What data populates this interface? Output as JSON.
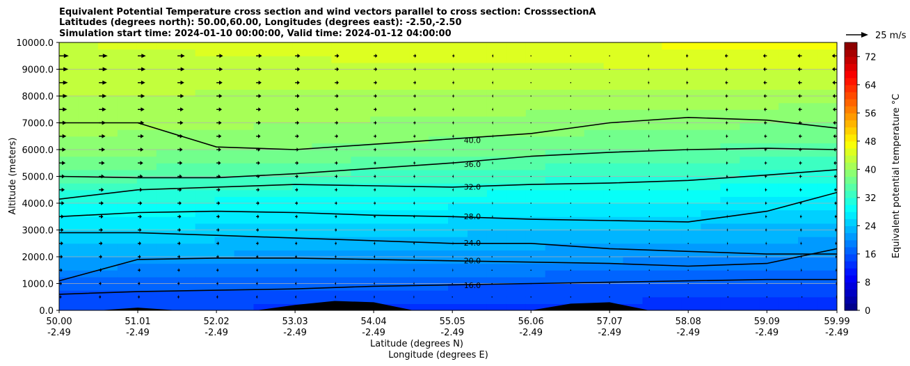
{
  "chart_data": {
    "type": "heatmap",
    "title_lines": [
      "Equivalent Potential Temperature cross section and wind vectors parallel to cross section: CrosssectionA",
      "Latitudes (degrees north): 50.00,60.00, Longitudes (degrees east): -2.50,-2.50",
      "Simulation start time: 2024-01-10 00:00:00, Valid time: 2024-01-12 04:00:00"
    ],
    "xlabel_lines": [
      "Latitude (degrees N)",
      "Longitude (degrees E)"
    ],
    "ylabel": "Altitude (meters)",
    "x_ticks": [
      {
        "lat": "50.00",
        "lon": "-2.49",
        "v": 50.0
      },
      {
        "lat": "51.01",
        "lon": "-2.49",
        "v": 51.01
      },
      {
        "lat": "52.02",
        "lon": "-2.49",
        "v": 52.02
      },
      {
        "lat": "53.03",
        "lon": "-2.49",
        "v": 53.03
      },
      {
        "lat": "54.04",
        "lon": "-2.49",
        "v": 54.04
      },
      {
        "lat": "55.05",
        "lon": "-2.49",
        "v": 55.05
      },
      {
        "lat": "56.06",
        "lon": "-2.49",
        "v": 56.06
      },
      {
        "lat": "57.07",
        "lon": "-2.49",
        "v": 57.07
      },
      {
        "lat": "58.08",
        "lon": "-2.49",
        "v": 58.08
      },
      {
        "lat": "59.09",
        "lon": "-2.49",
        "v": 59.09
      },
      {
        "lat": "59.99",
        "lon": "-2.49",
        "v": 59.99
      }
    ],
    "xlim": [
      50.0,
      59.99
    ],
    "y_ticks": [
      "0.0",
      "1000.0",
      "2000.0",
      "3000.0",
      "4000.0",
      "5000.0",
      "6000.0",
      "7000.0",
      "8000.0",
      "9000.0",
      "10000.0"
    ],
    "ylim": [
      0,
      10000
    ],
    "grid": "horizontal",
    "colorbar": {
      "label": "Equivalent potential temperature °C",
      "ticks": [
        "0",
        "8",
        "16",
        "24",
        "32",
        "40",
        "48",
        "56",
        "64",
        "72"
      ],
      "range": [
        0,
        76
      ],
      "colormap": "jet"
    },
    "quiver_key": {
      "label": "25 m/s",
      "speed": 25
    },
    "contour_levels": [
      {
        "value": 16,
        "label": "16.0",
        "heights": [
          600,
          700,
          750,
          800,
          900,
          950,
          1000,
          1050,
          1100,
          1150,
          1150
        ]
      },
      {
        "value": 20,
        "label": "20.0",
        "heights": [
          1100,
          1900,
          1950,
          1950,
          1900,
          1850,
          1800,
          1750,
          1650,
          1750,
          2300
        ]
      },
      {
        "value": 24,
        "label": "24.0",
        "heights": [
          2900,
          2900,
          2800,
          2700,
          2600,
          2500,
          2500,
          2300,
          2200,
          2100,
          2100
        ]
      },
      {
        "value": 28,
        "label": "28.0",
        "heights": [
          3500,
          3650,
          3700,
          3650,
          3550,
          3500,
          3400,
          3350,
          3300,
          3700,
          4400
        ]
      },
      {
        "value": 32,
        "label": "32.0",
        "heights": [
          4150,
          4500,
          4600,
          4700,
          4650,
          4600,
          4700,
          4750,
          4850,
          5050,
          5250
        ]
      },
      {
        "value": 36,
        "label": "36.0",
        "heights": [
          5000,
          4950,
          4950,
          5100,
          5300,
          5500,
          5750,
          5900,
          6000,
          6050,
          6000
        ]
      },
      {
        "value": 40,
        "label": "40.0",
        "heights": [
          7000,
          7000,
          6100,
          6000,
          6200,
          6400,
          6600,
          7000,
          7200,
          7100,
          6800
        ]
      }
    ],
    "temperature_profile": {
      "altitudes": [
        0,
        500,
        1000,
        2000,
        3000,
        4000,
        5000,
        6000,
        7000,
        8000,
        9000,
        10000
      ],
      "values_south": [
        14,
        15,
        17,
        22,
        26,
        30,
        35,
        39,
        41,
        42,
        43,
        44
      ],
      "values_north": [
        13,
        14,
        16,
        20,
        23,
        27,
        31,
        35,
        38,
        41,
        44,
        47
      ]
    },
    "wind": {
      "lats": [
        50.0,
        50.51,
        51.01,
        51.52,
        52.02,
        52.53,
        53.03,
        53.54,
        54.04,
        54.55,
        55.05,
        55.56,
        56.06,
        56.57,
        57.07,
        57.58,
        58.08,
        58.59,
        59.09,
        59.54,
        59.99
      ],
      "altitudes": [
        500,
        1000,
        1500,
        2000,
        2500,
        3000,
        3500,
        4000,
        4500,
        5000,
        5500,
        6000,
        6500,
        7000,
        7500,
        8000,
        8500,
        9000,
        9500
      ],
      "south_surface_u": 3,
      "south_top_u": 15,
      "north_surface_u": -1,
      "north_top_u": -8
    },
    "terrain_heights": [
      0,
      0,
      100,
      0,
      0,
      0,
      200,
      350,
      300,
      0,
      0,
      0,
      0,
      250,
      300,
      0,
      0,
      0,
      0,
      0,
      0
    ]
  },
  "colors": {
    "jet": [
      "#00007f",
      "#0000ff",
      "#007fff",
      "#00ffff",
      "#7fff7f",
      "#ffff00",
      "#ff7f00",
      "#ff0000",
      "#7f0000"
    ],
    "contour": "#000000",
    "grid": "#b0b0b0"
  }
}
